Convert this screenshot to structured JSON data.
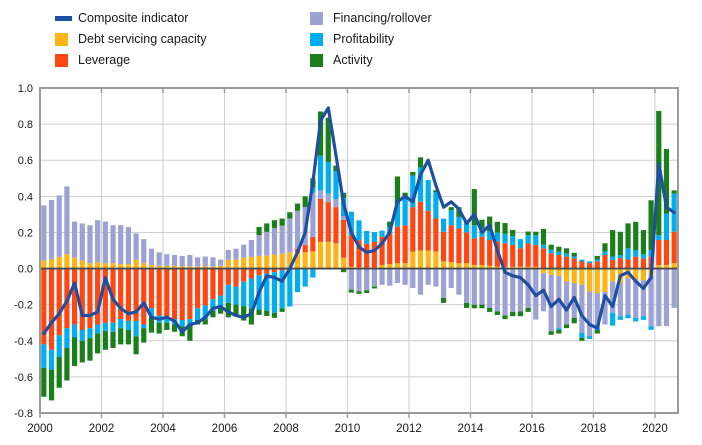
{
  "legend": {
    "items": [
      {
        "id": "composite",
        "label": "Composite indicator",
        "color": "#1f4fa0",
        "swatch": "line"
      },
      {
        "id": "debt_servicing",
        "label": "Debt servicing capacity",
        "color": "#fdb515",
        "swatch": "square"
      },
      {
        "id": "leverage",
        "label": "Leverage",
        "color": "#ff4713",
        "swatch": "square"
      },
      {
        "id": "financing",
        "label": "Financing/rollover",
        "color": "#9ca3d4",
        "swatch": "square"
      },
      {
        "id": "profitability",
        "label": "Profitability",
        "color": "#00aeef",
        "swatch": "square"
      },
      {
        "id": "activity",
        "label": "Activity",
        "color": "#1a7f1a",
        "swatch": "square"
      }
    ]
  },
  "chart_data": {
    "type": "bar",
    "subtype": "stacked-bars-with-line-overlay",
    "x_start": "2000Q1",
    "x_end": "2020Q3",
    "n_quarters": 83,
    "ylim": [
      -0.8,
      1.0
    ],
    "grid": true,
    "legend_position": "top",
    "y_ticks": {
      "values": [
        1.0,
        0.8,
        0.6,
        0.4,
        0.2,
        0.0,
        -0.2,
        -0.4,
        -0.6,
        -0.8
      ],
      "labels": [
        "1.0",
        "0.8",
        "0.6",
        "0.4",
        "0.2",
        "0.0",
        "-0.2",
        "-0.4",
        "-0.6",
        "-0.8"
      ]
    },
    "x_ticks": {
      "values": [
        2000,
        2002,
        2004,
        2006,
        2008,
        2010,
        2012,
        2014,
        2016,
        2018,
        2020
      ],
      "labels": [
        "2000",
        "2002",
        "2004",
        "2006",
        "2008",
        "2010",
        "2012",
        "2014",
        "2016",
        "2018",
        "2020"
      ]
    },
    "colors": {
      "composite": "#1f4fa0",
      "debt_servicing": "#fdb515",
      "leverage": "#ff4713",
      "financing": "#9ca3d4",
      "profitability": "#00aeef",
      "activity": "#1a7f1a",
      "grid": "#cfcfcf",
      "frame": "#9b9b9b",
      "zero_line": "#4a4a4a",
      "text": "#1a1a1a",
      "background": "#ffffff"
    },
    "series": {
      "composite": [
        -0.36,
        -0.3,
        -0.25,
        -0.18,
        -0.08,
        -0.26,
        -0.26,
        -0.24,
        -0.05,
        -0.17,
        -0.22,
        -0.25,
        -0.24,
        -0.19,
        -0.27,
        -0.28,
        -0.27,
        -0.29,
        -0.35,
        -0.31,
        -0.3,
        -0.27,
        -0.22,
        -0.21,
        -0.24,
        -0.26,
        -0.27,
        -0.25,
        -0.13,
        -0.04,
        -0.05,
        -0.07,
        0,
        0.09,
        0.2,
        0.48,
        0.82,
        0.89,
        0.63,
        0.36,
        0.2,
        0.12,
        0.09,
        0.1,
        0.14,
        0.2,
        0.37,
        0.4,
        0.37,
        0.52,
        0.6,
        0.46,
        0.34,
        0.37,
        0.33,
        0.25,
        0.3,
        0.2,
        0.24,
        0.1,
        -0.02,
        -0.04,
        -0.05,
        -0.09,
        -0.15,
        -0.12,
        -0.21,
        -0.17,
        -0.23,
        -0.16,
        -0.26,
        -0.31,
        -0.33,
        -0.15,
        -0.21,
        -0.04,
        -0.02,
        -0.07,
        -0.11,
        -0.05,
        0.58,
        0.34,
        0.31
      ],
      "debt_servicing_pos": [
        0.045,
        0.05,
        0.065,
        0.08,
        0.06,
        0.045,
        0.03,
        0.035,
        0.03,
        0.03,
        0.025,
        0.025,
        0.048,
        0.03,
        0.02,
        0.015,
        0.015,
        0.015,
        0.012,
        0.012,
        0.012,
        0.012,
        0.012,
        0.015,
        0.048,
        0.05,
        0.06,
        0.064,
        0.07,
        0.073,
        0.077,
        0.082,
        0.09,
        0.09,
        0.09,
        0.095,
        0.148,
        0.148,
        0.14,
        0.06,
        0.01,
        0.005,
        0.005,
        0.005,
        0.02,
        0.025,
        0.03,
        0.03,
        0.094,
        0.1,
        0.1,
        0.095,
        0.04,
        0.035,
        0.03,
        0.03,
        0.02,
        0.02,
        0.015,
        0.01,
        0.01,
        0.01,
        0.011,
        0.01,
        0.01,
        0,
        0,
        0,
        0,
        0,
        0,
        0,
        0,
        0,
        0,
        0,
        0,
        0,
        0,
        0,
        0.02,
        0.02,
        0.03
      ],
      "debt_servicing_neg": [
        0,
        0,
        0,
        0,
        0,
        0,
        0,
        0,
        0,
        0,
        0,
        0,
        0,
        0,
        0,
        0,
        0,
        0,
        0,
        0,
        0,
        0,
        0,
        0,
        0,
        0,
        0,
        0,
        0,
        0,
        0,
        0,
        0,
        0,
        0,
        0,
        0,
        0,
        0,
        0,
        0,
        0,
        0,
        0,
        0,
        0,
        0,
        0,
        0,
        0,
        0,
        0,
        0,
        0,
        0,
        0,
        0,
        0,
        0,
        0,
        0,
        0,
        0,
        0,
        0,
        -0.026,
        -0.035,
        -0.04,
        -0.072,
        -0.08,
        -0.09,
        -0.127,
        -0.136,
        -0.13,
        -0.072,
        -0.081,
        -0.053,
        -0.06,
        -0.065,
        -0.04,
        0,
        0,
        0
      ],
      "leverage_pos": [
        0,
        0,
        0,
        0,
        0,
        0,
        0,
        0,
        0,
        0,
        0,
        0,
        0,
        0,
        0,
        0,
        0,
        0,
        0,
        0,
        0,
        0,
        0,
        0,
        0,
        0,
        0,
        0,
        0,
        0,
        0,
        0,
        0,
        0.02,
        0.04,
        0.08,
        0.238,
        0.22,
        0.2,
        0.21,
        0.175,
        0.152,
        0.133,
        0.142,
        0.156,
        0.17,
        0.202,
        0.21,
        0.246,
        0.27,
        0.22,
        0.182,
        0.164,
        0.205,
        0.192,
        0.17,
        0.147,
        0.156,
        0.143,
        0.139,
        0.13,
        0.12,
        0.101,
        0.129,
        0.12,
        0.112,
        0.084,
        0.075,
        0.066,
        0.057,
        0.039,
        0.03,
        0.04,
        0.075,
        0.048,
        0.057,
        0.05,
        0.066,
        0.055,
        0.066,
        0.138,
        0.138,
        0.174
      ],
      "leverage_neg": [
        -0.42,
        -0.45,
        -0.37,
        -0.33,
        -0.31,
        -0.34,
        -0.33,
        -0.31,
        -0.3,
        -0.3,
        -0.28,
        -0.29,
        -0.29,
        -0.31,
        -0.22,
        -0.26,
        -0.265,
        -0.28,
        -0.285,
        -0.28,
        -0.22,
        -0.205,
        -0.17,
        -0.15,
        -0.09,
        -0.1,
        -0.073,
        -0.055,
        -0.037,
        -0.028,
        -0.02,
        -0.01,
        0,
        0,
        0,
        0,
        0,
        0,
        0,
        0,
        0,
        0,
        0,
        0,
        0,
        0,
        0,
        0,
        0,
        0,
        0,
        0,
        0,
        0,
        0,
        0,
        0,
        0,
        0,
        0,
        0,
        0,
        0,
        0,
        0,
        0,
        0,
        0,
        0,
        0,
        0,
        0,
        0,
        0,
        0,
        0,
        0,
        0,
        0,
        0,
        0,
        0,
        0
      ],
      "financing_pos": [
        0.305,
        0.33,
        0.34,
        0.375,
        0.2,
        0.205,
        0.21,
        0.233,
        0.23,
        0.21,
        0.215,
        0.205,
        0.147,
        0.133,
        0.09,
        0.075,
        0.064,
        0.06,
        0.058,
        0.063,
        0.05,
        0.055,
        0.05,
        0.035,
        0.055,
        0.06,
        0.072,
        0.094,
        0.115,
        0.13,
        0.147,
        0.156,
        0.187,
        0.21,
        0.21,
        0.245,
        0.047,
        0.047,
        0.045,
        0.02,
        0,
        0,
        0,
        0,
        0,
        0,
        0,
        0,
        0,
        0,
        0,
        0,
        0,
        0,
        0,
        0,
        0,
        0,
        0,
        0,
        0,
        0,
        0,
        0,
        0,
        0,
        0,
        0,
        0,
        0,
        0,
        0,
        0,
        0,
        0,
        0,
        0,
        0,
        0,
        0,
        0,
        0,
        0
      ],
      "financing_neg": [
        0,
        0,
        0,
        0,
        0,
        0,
        0,
        0,
        0,
        0,
        0,
        0,
        0,
        0,
        0,
        0,
        0,
        0,
        0,
        0,
        0,
        0,
        0,
        0,
        0,
        0,
        0,
        0,
        0,
        0,
        0,
        0,
        0,
        0,
        0,
        0,
        0,
        0,
        0,
        0,
        -0.117,
        -0.126,
        -0.12,
        -0.1,
        -0.09,
        -0.095,
        -0.08,
        -0.09,
        -0.108,
        -0.145,
        -0.09,
        -0.1,
        -0.163,
        -0.108,
        -0.145,
        -0.19,
        -0.2,
        -0.2,
        -0.218,
        -0.237,
        -0.26,
        -0.24,
        -0.237,
        -0.218,
        -0.283,
        -0.211,
        -0.312,
        -0.29,
        -0.238,
        -0.193,
        -0.266,
        -0.247,
        -0.194,
        -0.18,
        -0.174,
        -0.183,
        -0.202,
        -0.213,
        -0.199,
        -0.279,
        -0.319,
        -0.319,
        -0.218
      ],
      "profitability_pos": [
        0,
        0,
        0,
        0,
        0,
        0,
        0,
        0,
        0,
        0,
        0,
        0,
        0,
        0,
        0,
        0,
        0,
        0,
        0,
        0,
        0,
        0,
        0,
        0,
        0,
        0,
        0,
        0,
        0,
        0,
        0,
        0,
        0,
        0,
        0,
        0.03,
        0.192,
        0.175,
        0.155,
        0.1,
        0.13,
        0.11,
        0.07,
        0.055,
        0.034,
        0.035,
        0.128,
        0.16,
        0.175,
        0.19,
        0.17,
        0.147,
        0.073,
        0.083,
        0.064,
        0.059,
        0.073,
        0.048,
        0.05,
        0.05,
        0.052,
        0.05,
        0.051,
        0.046,
        0.055,
        0.02,
        0.02,
        0.018,
        0.018,
        0.01,
        0.01,
        0.01,
        0.01,
        0.02,
        0.018,
        0.018,
        0.062,
        0.037,
        0.024,
        0.037,
        0.027,
        0.147,
        0.211
      ],
      "profitability_neg": [
        -0.13,
        -0.11,
        -0.12,
        -0.11,
        -0.07,
        -0.06,
        -0.055,
        -0.05,
        -0.045,
        -0.05,
        -0.05,
        -0.05,
        -0.085,
        -0.02,
        -0.05,
        -0.04,
        -0.035,
        -0.03,
        -0.035,
        -0.035,
        -0.065,
        -0.075,
        -0.065,
        -0.065,
        -0.1,
        -0.1,
        -0.135,
        -0.165,
        -0.19,
        -0.205,
        -0.225,
        -0.21,
        -0.21,
        -0.13,
        -0.1,
        -0.05,
        0,
        0,
        0,
        0,
        0,
        0,
        0,
        0,
        0,
        0,
        0,
        0,
        0,
        0,
        0,
        0,
        0,
        0,
        0,
        0,
        0,
        0,
        0,
        0,
        0,
        0,
        0,
        0,
        0,
        0,
        0,
        -0.01,
        0,
        0,
        -0.027,
        -0.016,
        -0.01,
        0,
        -0.07,
        -0.02,
        -0.02,
        -0.02,
        -0.02,
        -0.02,
        0,
        0,
        0
      ],
      "activity_pos": [
        0,
        0,
        0,
        0,
        0,
        0,
        0,
        0,
        0,
        0,
        0,
        0,
        0,
        0,
        0,
        0,
        0,
        0,
        0,
        0,
        0,
        0,
        0,
        0,
        0,
        0,
        0,
        0,
        0.045,
        0.047,
        0.044,
        0.039,
        0.035,
        0.04,
        0.06,
        0.05,
        0.245,
        0.245,
        0.03,
        0.03,
        0,
        0,
        0,
        0,
        0,
        0.03,
        0.15,
        0.02,
        0.02,
        0.056,
        0,
        0.01,
        0,
        0.017,
        0.054,
        0,
        0.2,
        0.046,
        0.08,
        0.06,
        0.06,
        0.034,
        0,
        0.02,
        0.019,
        0.087,
        0.028,
        0.028,
        0.028,
        0.02,
        0,
        0,
        0.02,
        0.045,
        0.147,
        0.129,
        0.138,
        0.156,
        0.134,
        0.275,
        0.688,
        0.357,
        0.018
      ],
      "activity_neg": [
        -0.16,
        -0.17,
        -0.17,
        -0.18,
        -0.16,
        -0.12,
        -0.125,
        -0.11,
        -0.105,
        -0.09,
        -0.09,
        -0.08,
        -0.1,
        -0.08,
        -0.085,
        -0.06,
        -0.04,
        -0.04,
        -0.055,
        -0.085,
        -0.025,
        -0.03,
        -0.035,
        -0.035,
        -0.08,
        -0.065,
        -0.08,
        -0.09,
        -0.03,
        -0.03,
        -0.028,
        -0.02,
        0,
        0,
        0,
        0,
        0,
        0,
        0,
        -0.02,
        -0.016,
        -0.014,
        -0.015,
        -0.01,
        0,
        0,
        0,
        0,
        0,
        0,
        0,
        0,
        -0.027,
        0,
        0,
        -0.028,
        -0.02,
        -0.02,
        -0.022,
        -0.02,
        -0.02,
        -0.024,
        -0.027,
        -0.022,
        0,
        0,
        -0.02,
        -0.02,
        -0.02,
        -0.03,
        -0.017,
        0,
        -0.02,
        0,
        0,
        0,
        0,
        0,
        0,
        0,
        0,
        0,
        0
      ]
    }
  }
}
